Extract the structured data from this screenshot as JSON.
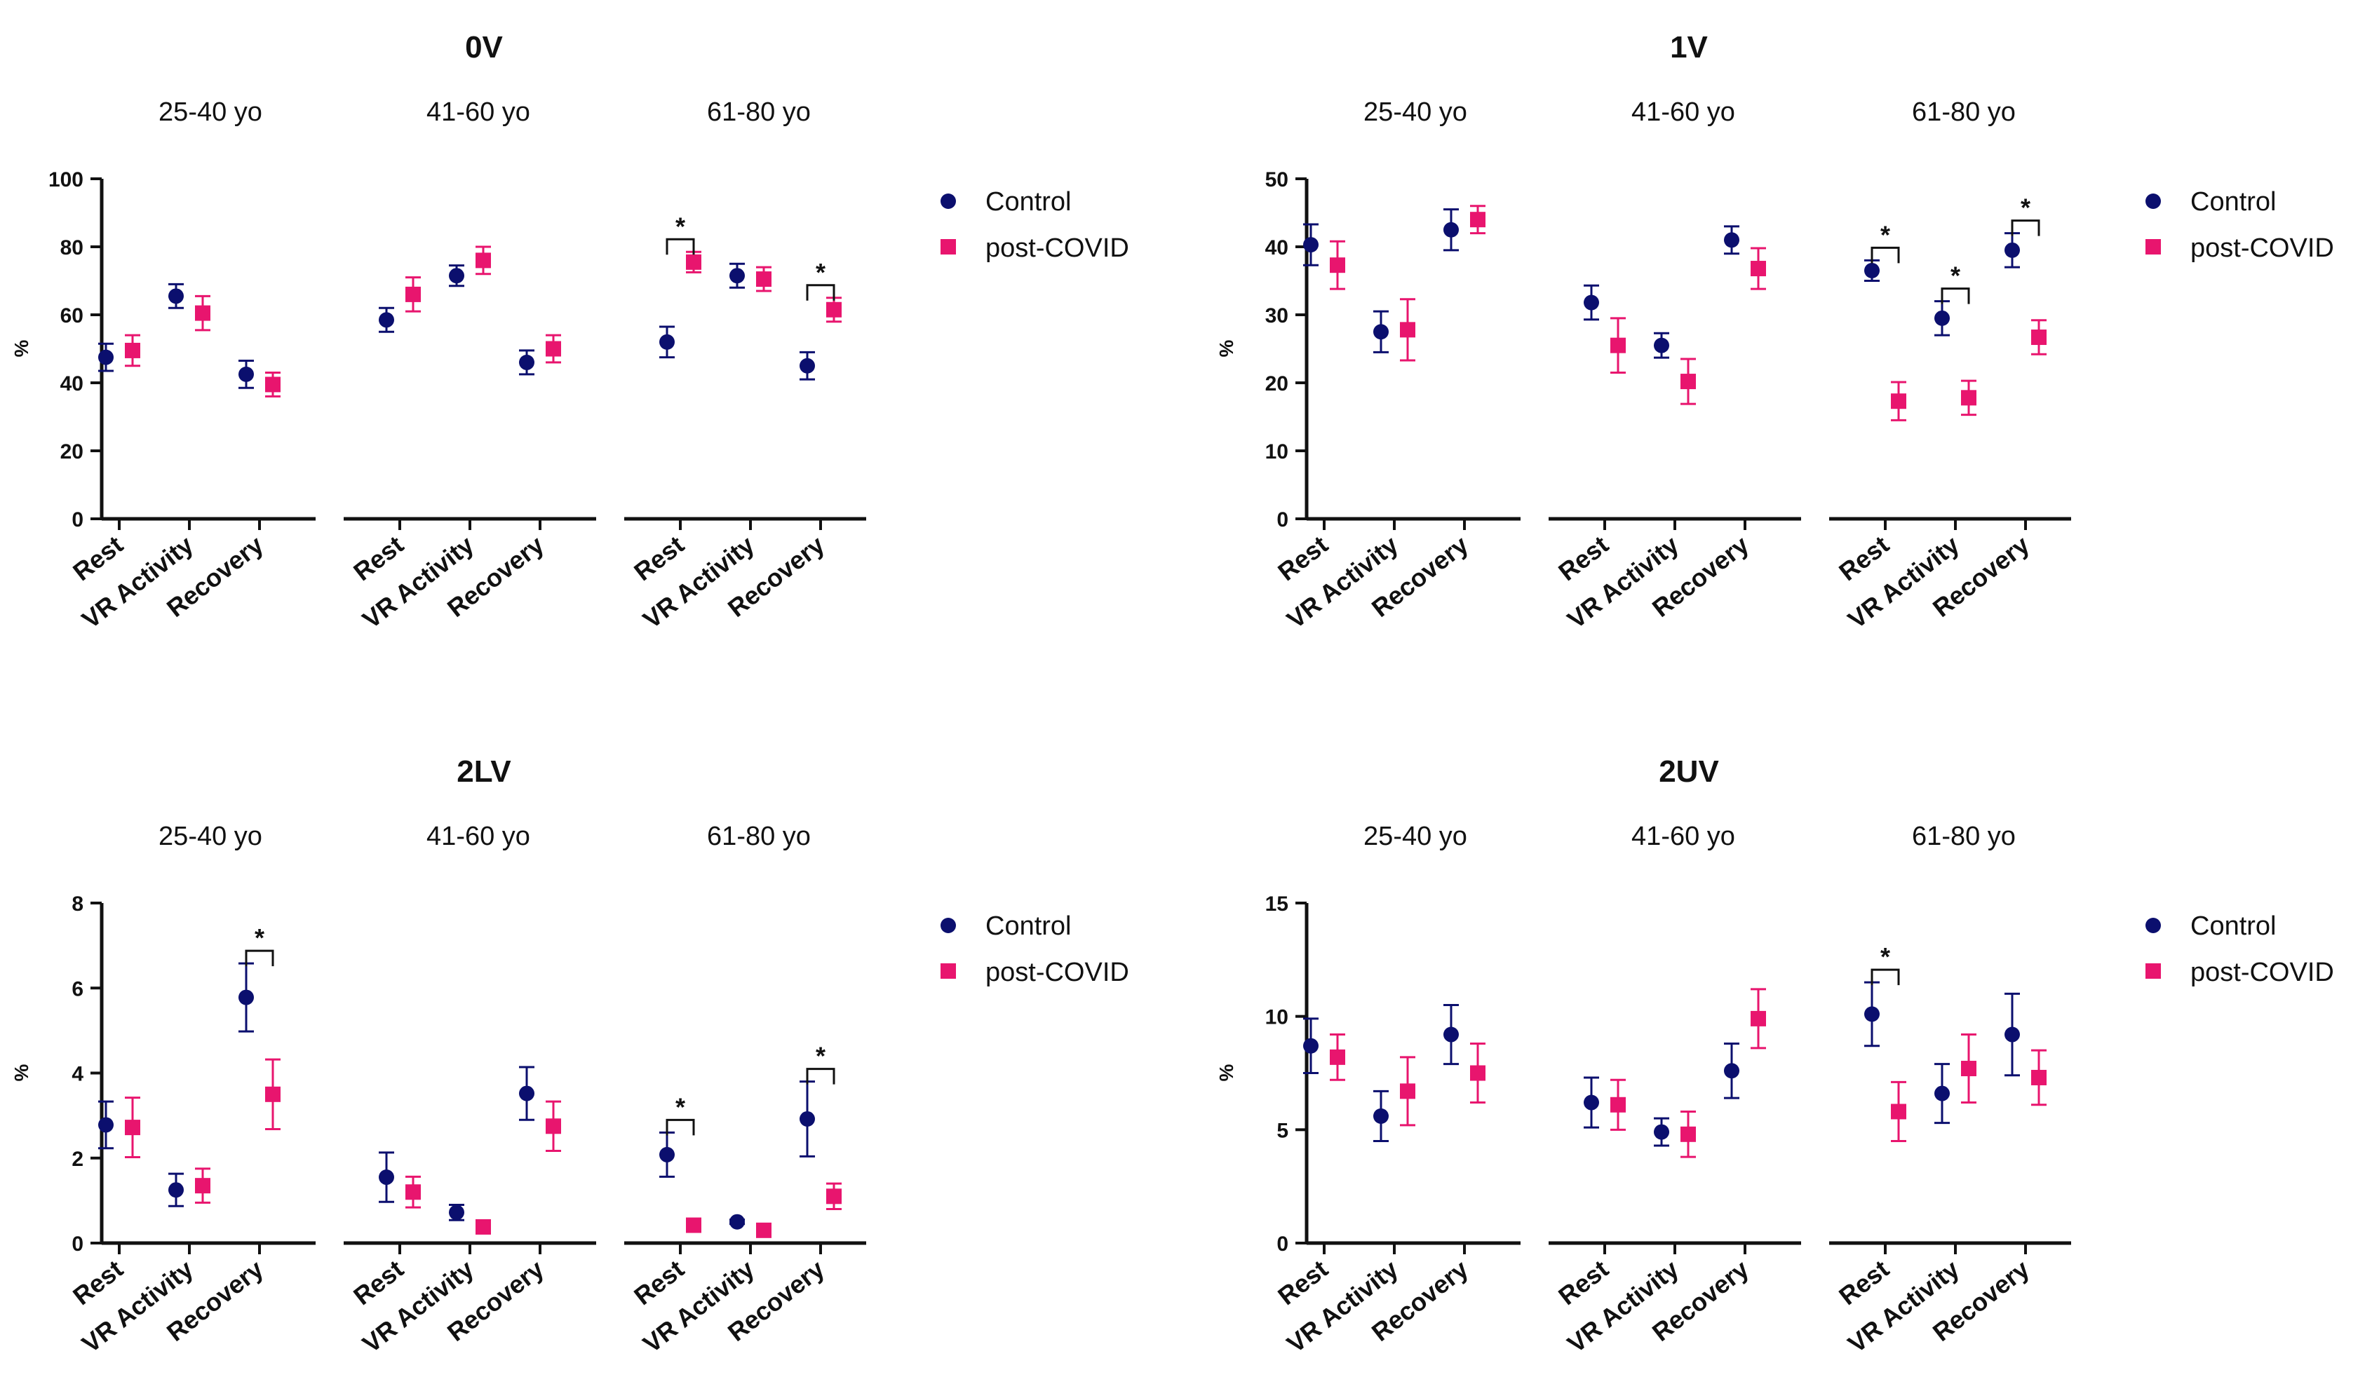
{
  "colors": {
    "control": "#0b0f6e",
    "post_covid": "#e8156e",
    "axis": "#111111"
  },
  "chart_data": [
    {
      "type": "scatter",
      "title": "0V",
      "groups": [
        "25-40 yo",
        "41-60 yo",
        "61-80 yo"
      ],
      "categories": [
        "Rest",
        "VR Activity",
        "Recovery",
        "Rest",
        "VR Activity",
        "Recovery",
        "Rest",
        "VR Activity",
        "Recovery"
      ],
      "ylabel": "%",
      "ylim": [
        0,
        100
      ],
      "yticks": [
        "0",
        "20",
        "40",
        "60",
        "80",
        "100"
      ],
      "legend": [
        "Control",
        "post-COVID"
      ],
      "series": [
        {
          "name": "Control",
          "marker": "circle",
          "values": [
            47.5,
            65.5,
            42.5,
            58.5,
            71.5,
            46,
            52,
            71.5,
            45
          ],
          "errors": [
            4,
            3.5,
            4,
            3.5,
            3,
            3.5,
            4.5,
            3.5,
            4
          ]
        },
        {
          "name": "post-COVID",
          "marker": "square",
          "values": [
            49.5,
            60.5,
            39.5,
            66,
            76,
            50,
            75.5,
            70.5,
            61.5
          ],
          "errors": [
            4.5,
            5,
            3.5,
            5,
            4,
            4,
            3,
            3.5,
            3.5
          ]
        }
      ],
      "significance": [
        {
          "index": 6,
          "label": "*"
        },
        {
          "index": 8,
          "label": "*"
        }
      ]
    },
    {
      "type": "scatter",
      "title": "1V",
      "groups": [
        "25-40 yo",
        "41-60 yo",
        "61-80 yo"
      ],
      "categories": [
        "Rest",
        "VR Activity",
        "Recovery",
        "Rest",
        "VR Activity",
        "Recovery",
        "Rest",
        "VR Activity",
        "Recovery"
      ],
      "ylabel": "%",
      "ylim": [
        0,
        50
      ],
      "yticks": [
        "0",
        "10",
        "20",
        "30",
        "40",
        "50"
      ],
      "legend": [
        "Control",
        "post-COVID"
      ],
      "series": [
        {
          "name": "Control",
          "marker": "circle",
          "values": [
            40.3,
            27.5,
            42.5,
            31.8,
            25.5,
            41,
            36.5,
            29.5,
            39.5
          ],
          "errors": [
            3,
            3,
            3,
            2.5,
            1.8,
            2,
            1.5,
            2.5,
            2.5
          ]
        },
        {
          "name": "post-COVID",
          "marker": "square",
          "values": [
            37.3,
            27.8,
            44,
            25.5,
            20.2,
            36.8,
            17.3,
            17.8,
            26.7
          ],
          "errors": [
            3.5,
            4.5,
            2,
            4,
            3.3,
            3,
            2.8,
            2.5,
            2.5
          ]
        }
      ],
      "significance": [
        {
          "index": 6,
          "label": "*"
        },
        {
          "index": 7,
          "label": "*"
        },
        {
          "index": 8,
          "label": "*"
        }
      ]
    },
    {
      "type": "scatter",
      "title": "2LV",
      "groups": [
        "25-40 yo",
        "41-60 yo",
        "61-80 yo"
      ],
      "categories": [
        "Rest",
        "VR Activity",
        "Recovery",
        "Rest",
        "VR Activity",
        "Recovery",
        "Rest",
        "VR Activity",
        "Recovery"
      ],
      "ylabel": "%",
      "ylim": [
        0,
        8
      ],
      "yticks": [
        "0",
        "2",
        "4",
        "6",
        "8"
      ],
      "legend": [
        "Control",
        "post-COVID"
      ],
      "series": [
        {
          "name": "Control",
          "marker": "circle",
          "values": [
            2.78,
            1.25,
            5.78,
            1.55,
            0.72,
            3.52,
            2.08,
            0.5,
            2.92
          ],
          "errors": [
            0.55,
            0.38,
            0.8,
            0.58,
            0.18,
            0.62,
            0.52,
            0.05,
            0.88
          ]
        },
        {
          "name": "post-COVID",
          "marker": "square",
          "values": [
            2.72,
            1.35,
            3.5,
            1.2,
            0.38,
            2.75,
            0.42,
            0.3,
            1.1
          ],
          "errors": [
            0.7,
            0.4,
            0.82,
            0.36,
            0.05,
            0.58,
            0.05,
            0.05,
            0.3
          ]
        }
      ],
      "significance": [
        {
          "index": 2,
          "label": "*"
        },
        {
          "index": 6,
          "label": "*"
        },
        {
          "index": 8,
          "label": "*"
        }
      ]
    },
    {
      "type": "scatter",
      "title": "2UV",
      "groups": [
        "25-40 yo",
        "41-60 yo",
        "61-80 yo"
      ],
      "categories": [
        "Rest",
        "VR Activity",
        "Recovery",
        "Rest",
        "VR Activity",
        "Recovery",
        "Rest",
        "VR Activity",
        "Recovery"
      ],
      "ylabel": "%",
      "ylim": [
        0,
        15
      ],
      "yticks": [
        "0",
        "5",
        "10",
        "15"
      ],
      "legend": [
        "Control",
        "post-COVID"
      ],
      "series": [
        {
          "name": "Control",
          "marker": "circle",
          "values": [
            8.7,
            5.6,
            9.2,
            6.2,
            4.9,
            7.6,
            10.1,
            6.6,
            9.2
          ],
          "errors": [
            1.2,
            1.1,
            1.3,
            1.1,
            0.6,
            1.2,
            1.4,
            1.3,
            1.8
          ]
        },
        {
          "name": "post-COVID",
          "marker": "square",
          "values": [
            8.2,
            6.7,
            7.5,
            6.1,
            4.8,
            9.9,
            5.8,
            7.7,
            7.3
          ],
          "errors": [
            1,
            1.5,
            1.3,
            1.1,
            1,
            1.3,
            1.3,
            1.5,
            1.2
          ]
        }
      ],
      "significance": [
        {
          "index": 6,
          "label": "*"
        }
      ]
    }
  ]
}
